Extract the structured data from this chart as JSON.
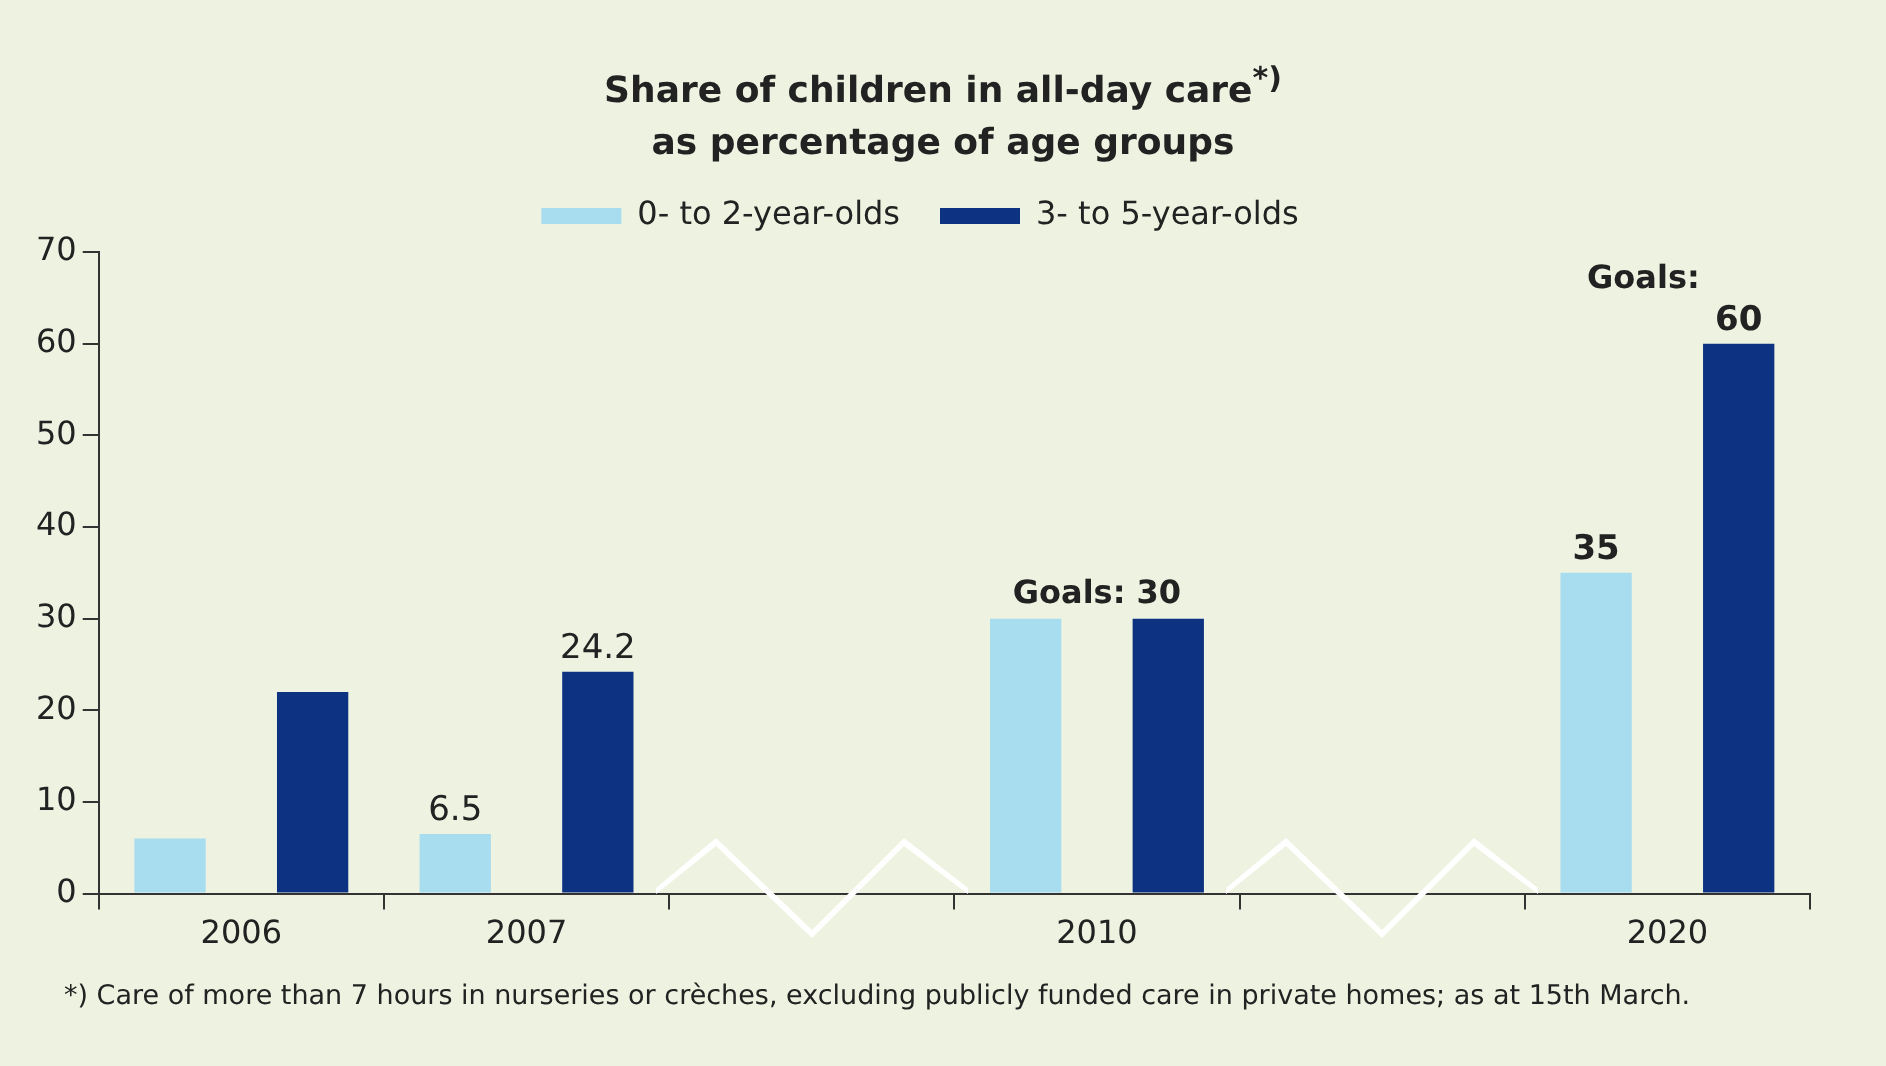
{
  "chart_data": {
    "type": "bar",
    "title": "Share of children in all-day care$^{*)}$",
    "subtitle": "as percentage of age groups",
    "categories": [
      "2006",
      "2007",
      null,
      "2010",
      null,
      "2020"
    ],
    "series": [
      {
        "name": "0- to 2-year-olds",
        "color": "#a8dcef",
        "values": [
          6,
          6.5,
          null,
          30,
          null,
          35
        ],
        "value_labels": [
          null,
          "6.5",
          null,
          null,
          null,
          "35"
        ]
      },
      {
        "name": "3- to 5-year-olds",
        "color": "#0d3282",
        "values": [
          22,
          24.2,
          null,
          30,
          null,
          60
        ],
        "value_labels": [
          null,
          "24.2",
          null,
          null,
          null,
          "60"
        ]
      }
    ],
    "ylim": [
      0,
      70
    ],
    "yticks": [
      0,
      10,
      20,
      30,
      40,
      50,
      60,
      70
    ],
    "grid": false,
    "legend": "top",
    "annotations": [
      "Goals: 30",
      "Goals:",
      "*) Care of more than 7 hours in nurseries or crèches, excluding publicly funded care in private homes; as at 15th March."
    ]
  }
}
